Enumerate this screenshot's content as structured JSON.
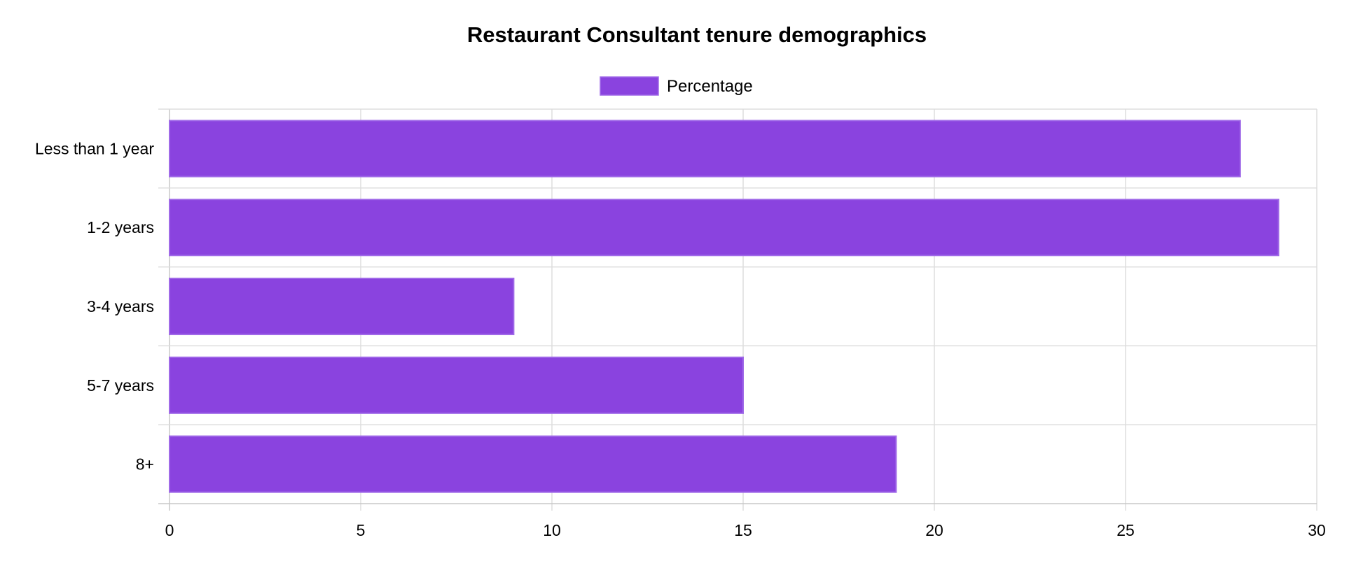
{
  "chart_data": {
    "type": "bar",
    "orientation": "horizontal",
    "title": "Restaurant Consultant tenure demographics",
    "categories": [
      "Less than 1 year",
      "1-2 years",
      "3-4 years",
      "5-7 years",
      "8+"
    ],
    "series": [
      {
        "name": "Percentage",
        "values": [
          28,
          29,
          9,
          15,
          19
        ],
        "color": "#8a43df",
        "border_color": "#a06ae8"
      }
    ],
    "x_ticks": [
      "0",
      "5",
      "10",
      "15",
      "20",
      "25",
      "30"
    ],
    "xlim": [
      0,
      30
    ],
    "xlabel": "",
    "ylabel": "",
    "grid": true,
    "legend_position": "top-center"
  }
}
